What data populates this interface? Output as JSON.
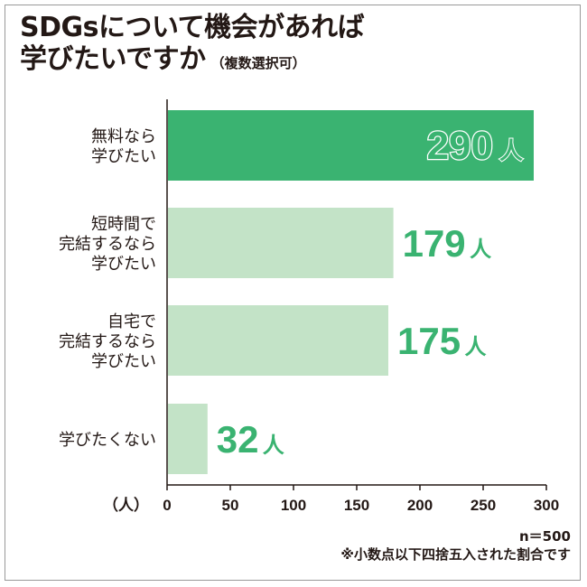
{
  "title": {
    "line1": "SDGsについて機会があれば",
    "line2": "学びたいですか",
    "suffix": "（複数選択可）"
  },
  "colors": {
    "highlight": "#3AB371",
    "normal": "#C3E3C7",
    "text": "#231815"
  },
  "chart_data": {
    "type": "bar",
    "orientation": "horizontal",
    "categories": [
      [
        "無料なら",
        "学びたい"
      ],
      [
        "短時間で",
        "完結するなら",
        "学びたい"
      ],
      [
        "自宅で",
        "完結するなら",
        "学びたい"
      ],
      [
        "学びたくない"
      ]
    ],
    "values": [
      290,
      179,
      175,
      32
    ],
    "value_labels": [
      "290",
      "179",
      "175",
      "32"
    ],
    "value_unit": "人",
    "highlight_index": 0,
    "xlabel": "（人）",
    "xlim": [
      0,
      300
    ],
    "xticks": [
      0,
      50,
      100,
      150,
      200,
      250,
      300
    ],
    "grid": false
  },
  "notes": {
    "n": "n＝500",
    "rounding": "※小数点以下四捨五入された割合です"
  }
}
